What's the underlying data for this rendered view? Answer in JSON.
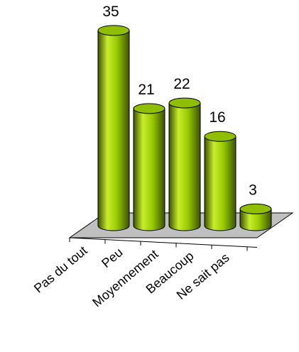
{
  "chart_data": {
    "type": "bar",
    "categories": [
      "Pas du tout",
      "Peu",
      "Moyennement",
      "Beaucoup",
      "Ne sait pas"
    ],
    "values": [
      35,
      21,
      22,
      16,
      3
    ],
    "data_labels": [
      "35",
      "21",
      "22",
      "16",
      "3"
    ],
    "title": "",
    "xlabel": "",
    "ylabel": "",
    "ylim": [
      0,
      35
    ],
    "grid": false,
    "legend": "none",
    "style": "3d-cylinder",
    "colors": {
      "bar_light": "#c8ec2e",
      "bar_mid": "#99cc00",
      "bar_dark": "#3d5200",
      "bar_top": "#8fbf00",
      "floor": "#c0c0c0",
      "outline": "#000000"
    }
  }
}
